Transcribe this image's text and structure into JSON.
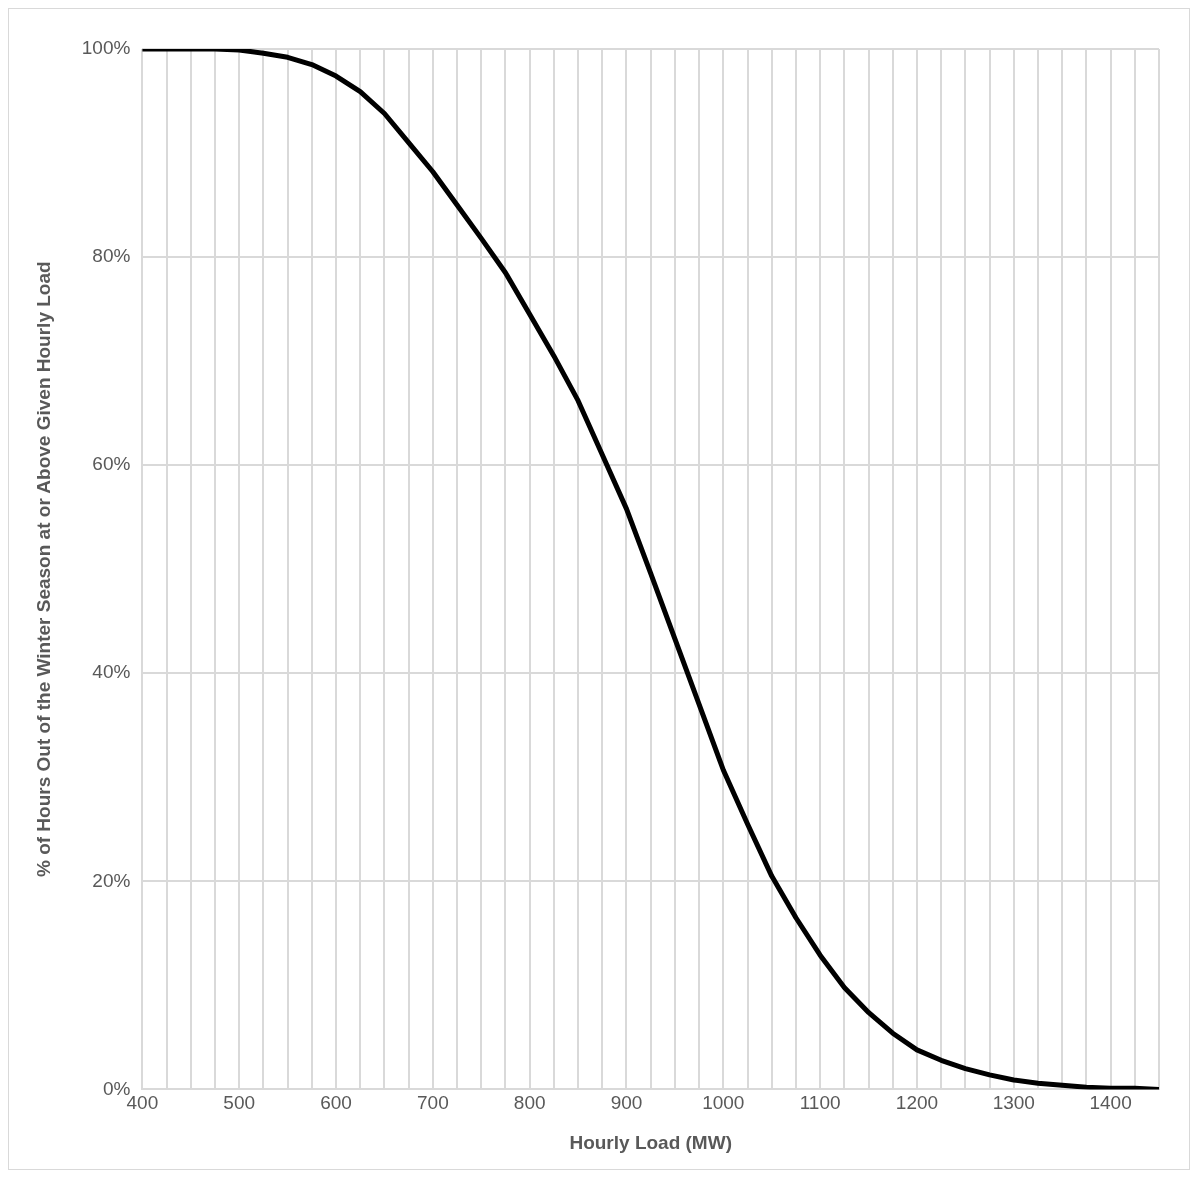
{
  "chart_data": {
    "type": "line",
    "xlabel": "Hourly Load (MW)",
    "ylabel": "% of Hours Out of the Winter Season at or Above Given Hourly Load",
    "x": [
      400,
      425,
      450,
      475,
      500,
      525,
      550,
      575,
      600,
      625,
      650,
      675,
      700,
      725,
      750,
      775,
      800,
      825,
      850,
      875,
      900,
      925,
      950,
      975,
      1000,
      1025,
      1050,
      1075,
      1100,
      1125,
      1150,
      1175,
      1200,
      1225,
      1250,
      1275,
      1300,
      1325,
      1350,
      1375,
      1400,
      1425,
      1450
    ],
    "series": [
      {
        "color": "#000000",
        "values": [
          100,
          100,
          100,
          100,
          99.9,
          99.6,
          99.2,
          98.5,
          97.4,
          95.9,
          93.8,
          91,
          88.2,
          85,
          81.8,
          78.5,
          74.5,
          70.5,
          66.2,
          61,
          55.8,
          49.6,
          43.3,
          37,
          30.7,
          25.5,
          20.5,
          16.5,
          12.9,
          9.8,
          7.4,
          5.4,
          3.8,
          2.8,
          2,
          1.4,
          0.9,
          0.6,
          0.4,
          0.2,
          0.1,
          0.1,
          0
        ]
      }
    ],
    "xlim": [
      400,
      1450
    ],
    "xticks": [
      400,
      {
        "value": 425,
        "label": null
      },
      {
        "value": 450,
        "label": null
      },
      {
        "value": 475,
        "label": null
      },
      500,
      {
        "value": 525,
        "label": null
      },
      {
        "value": 550,
        "label": null
      },
      {
        "value": 575,
        "label": null
      },
      600,
      {
        "value": 625,
        "label": null
      },
      {
        "value": 650,
        "label": null
      },
      {
        "value": 675,
        "label": null
      },
      700,
      {
        "value": 725,
        "label": null
      },
      {
        "value": 750,
        "label": null
      },
      {
        "value": 775,
        "label": null
      },
      800,
      {
        "value": 825,
        "label": null
      },
      {
        "value": 850,
        "label": null
      },
      {
        "value": 875,
        "label": null
      },
      900,
      {
        "value": 925,
        "label": null
      },
      {
        "value": 950,
        "label": null
      },
      {
        "value": 975,
        "label": null
      },
      1000,
      {
        "value": 1025,
        "label": null
      },
      {
        "value": 1050,
        "label": null
      },
      {
        "value": 1075,
        "label": null
      },
      1100,
      {
        "value": 1125,
        "label": null
      },
      {
        "value": 1150,
        "label": null
      },
      {
        "value": 1175,
        "label": null
      },
      1200,
      {
        "value": 1225,
        "label": null
      },
      {
        "value": 1250,
        "label": null
      },
      {
        "value": 1275,
        "label": null
      },
      1300,
      {
        "value": 1325,
        "label": null
      },
      {
        "value": 1350,
        "label": null
      },
      {
        "value": 1375,
        "label": null
      },
      1400,
      {
        "value": 1425,
        "label": null
      },
      {
        "value": 1450,
        "label": null
      }
    ],
    "ylim": [
      0,
      100
    ],
    "yticks": [
      {
        "value": 0,
        "label": "0%"
      },
      {
        "value": 20,
        "label": "20%"
      },
      {
        "value": 40,
        "label": "40%"
      },
      {
        "value": 60,
        "label": "60%"
      },
      {
        "value": 80,
        "label": "80%"
      },
      {
        "value": 100,
        "label": "100%"
      }
    ],
    "grid": true,
    "legend": false,
    "marker": "none",
    "line_style": "solid"
  }
}
